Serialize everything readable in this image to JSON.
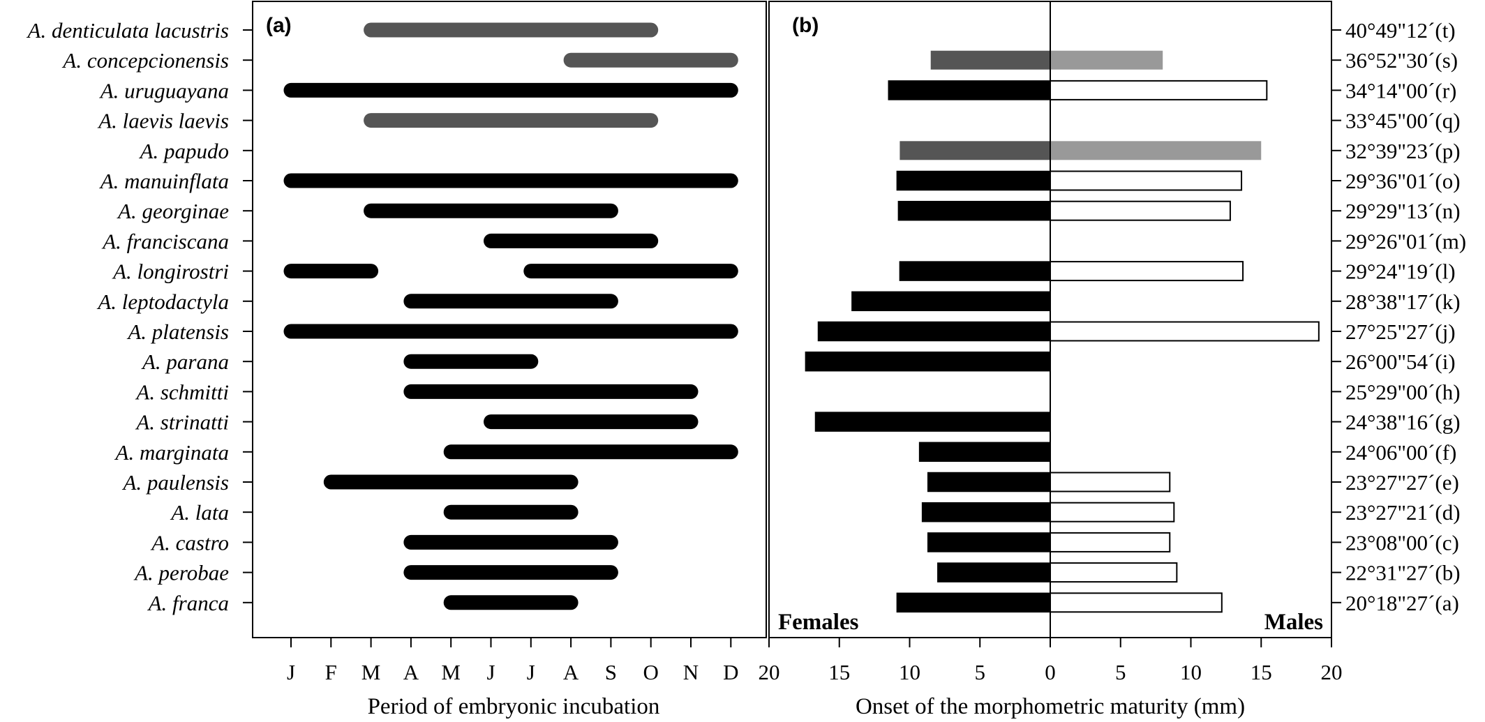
{
  "chart_data": [
    {
      "type": "bar",
      "panel_label": "(a)",
      "xlabel": "Period of embryonic incubation",
      "ylabel": "",
      "months": [
        "J",
        "F",
        "M",
        "A",
        "M",
        "J",
        "J",
        "A",
        "S",
        "O",
        "N",
        "D"
      ],
      "grid": false,
      "species": [
        {
          "name": "A. denticulata lacustris",
          "periods": [
            [
              3,
              10
            ]
          ],
          "color": "#555555"
        },
        {
          "name": "A. concepcionensis",
          "periods": [
            [
              8,
              12
            ]
          ],
          "color": "#555555"
        },
        {
          "name": "A. uruguayana",
          "periods": [
            [
              1,
              12
            ]
          ],
          "color": "#000000"
        },
        {
          "name": "A. laevis laevis",
          "periods": [
            [
              3,
              10
            ]
          ],
          "color": "#555555"
        },
        {
          "name": "A. papudo",
          "periods": [],
          "color": "#000000"
        },
        {
          "name": "A. manuinflata",
          "periods": [
            [
              1,
              12
            ]
          ],
          "color": "#000000"
        },
        {
          "name": "A. georginae",
          "periods": [
            [
              3,
              9
            ]
          ],
          "color": "#000000"
        },
        {
          "name": "A. franciscana",
          "periods": [
            [
              6,
              10
            ]
          ],
          "color": "#000000"
        },
        {
          "name": "A. longirostri",
          "periods": [
            [
              1,
              3
            ],
            [
              7,
              12
            ]
          ],
          "color": "#000000"
        },
        {
          "name": "A. leptodactyla",
          "periods": [
            [
              4,
              9
            ]
          ],
          "color": "#000000"
        },
        {
          "name": "A. platensis",
          "periods": [
            [
              1,
              12
            ]
          ],
          "color": "#000000"
        },
        {
          "name": "A. parana",
          "periods": [
            [
              4,
              7
            ]
          ],
          "color": "#000000"
        },
        {
          "name": "A. schmitti",
          "periods": [
            [
              4,
              11
            ]
          ],
          "color": "#000000"
        },
        {
          "name": "A. strinatti",
          "periods": [
            [
              6,
              11
            ]
          ],
          "color": "#000000"
        },
        {
          "name": "A. marginata",
          "periods": [
            [
              5,
              12
            ]
          ],
          "color": "#000000"
        },
        {
          "name": "A. paulensis",
          "periods": [
            [
              2,
              8
            ]
          ],
          "color": "#000000"
        },
        {
          "name": "A. lata",
          "periods": [
            [
              5,
              8
            ]
          ],
          "color": "#000000"
        },
        {
          "name": "A. castro",
          "periods": [
            [
              4,
              9
            ]
          ],
          "color": "#000000"
        },
        {
          "name": "A. perobae",
          "periods": [
            [
              4,
              9
            ]
          ],
          "color": "#000000"
        },
        {
          "name": "A. franca",
          "periods": [
            [
              5,
              8
            ]
          ],
          "color": "#000000"
        }
      ]
    },
    {
      "type": "bar",
      "panel_label": "(b)",
      "xlabel": "Onset of the morphometric maturity (mm)",
      "ylabel": "",
      "xticks": [
        20,
        15,
        10,
        5,
        0,
        5,
        10,
        15,
        20
      ],
      "xlim": [
        -20,
        20
      ],
      "grid": false,
      "left_label": "Females",
      "right_label": "Males",
      "rows": [
        {
          "lat": "40°49\"12´(t)",
          "female": null,
          "male": null,
          "female_color": "#555555",
          "male_color": "#999999"
        },
        {
          "lat": "36°52\"30´(s)",
          "female": 8.5,
          "male": 8.0,
          "female_color": "#555555",
          "male_color": "#999999"
        },
        {
          "lat": "34°14\"00´(r)",
          "female": 11.5,
          "male": 15.4,
          "female_color": "#000000",
          "male_color": "#ffffff"
        },
        {
          "lat": "33°45\"00´(q)",
          "female": null,
          "male": null,
          "female_color": "#000000",
          "male_color": "#ffffff"
        },
        {
          "lat": "32°39\"23´(p)",
          "female": 10.7,
          "male": 15.0,
          "female_color": "#555555",
          "male_color": "#999999"
        },
        {
          "lat": "29°36\"01´(o)",
          "female": 10.9,
          "male": 13.6,
          "female_color": "#000000",
          "male_color": "#ffffff"
        },
        {
          "lat": "29°29\"13´(n)",
          "female": 10.8,
          "male": 12.8,
          "female_color": "#000000",
          "male_color": "#ffffff"
        },
        {
          "lat": "29°26\"01´(m)",
          "female": null,
          "male": null,
          "female_color": "#000000",
          "male_color": "#ffffff"
        },
        {
          "lat": "29°24\"19´(l)",
          "female": 10.7,
          "male": 13.7,
          "female_color": "#000000",
          "male_color": "#ffffff"
        },
        {
          "lat": "28°38\"17´(k)",
          "female": 14.1,
          "male": null,
          "female_color": "#000000",
          "male_color": "#ffffff"
        },
        {
          "lat": "27°25\"27´(j)",
          "female": 16.5,
          "male": 19.1,
          "female_color": "#000000",
          "male_color": "#ffffff"
        },
        {
          "lat": "26°00\"54´(i)",
          "female": 17.4,
          "male": null,
          "female_color": "#000000",
          "male_color": "#ffffff"
        },
        {
          "lat": "25°29\"00´(h)",
          "female": null,
          "male": null,
          "female_color": "#000000",
          "male_color": "#ffffff"
        },
        {
          "lat": "24°38\"16´(g)",
          "female": 16.7,
          "male": null,
          "female_color": "#000000",
          "male_color": "#ffffff"
        },
        {
          "lat": "24°06\"00´(f)",
          "female": 9.3,
          "male": null,
          "female_color": "#000000",
          "male_color": "#ffffff"
        },
        {
          "lat": "23°27\"27´(e)",
          "female": 8.7,
          "male": 8.5,
          "female_color": "#000000",
          "male_color": "#ffffff"
        },
        {
          "lat": "23°27\"21´(d)",
          "female": 9.1,
          "male": 8.8,
          "female_color": "#000000",
          "male_color": "#ffffff"
        },
        {
          "lat": "23°08\"00´(c)",
          "female": 8.7,
          "male": 8.5,
          "female_color": "#000000",
          "male_color": "#ffffff"
        },
        {
          "lat": "22°31\"27´(b)",
          "female": 8.0,
          "male": 9.0,
          "female_color": "#000000",
          "male_color": "#ffffff"
        },
        {
          "lat": "20°18\"27´(a)",
          "female": 10.9,
          "male": 12.2,
          "female_color": "#000000",
          "male_color": "#ffffff"
        }
      ]
    }
  ]
}
